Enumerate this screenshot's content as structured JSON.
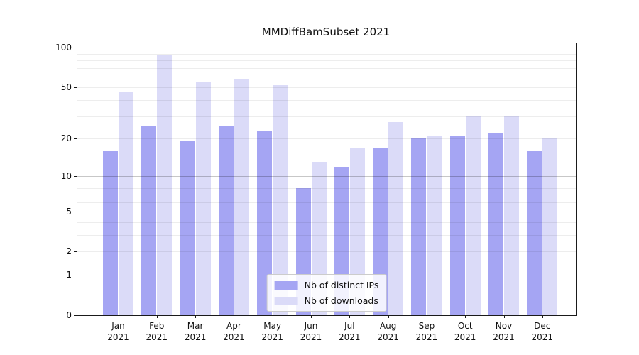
{
  "chart_data": {
    "type": "bar",
    "title": "MMDiffBamSubset 2021",
    "categories": [
      "Jan\n2021",
      "Feb\n2021",
      "Mar\n2021",
      "Apr\n2021",
      "May\n2021",
      "Jun\n2021",
      "Jul\n2021",
      "Aug\n2021",
      "Sep\n2021",
      "Oct\n2021",
      "Nov\n2021",
      "Dec\n2021"
    ],
    "series": [
      {
        "name": "Nb of distinct IPs",
        "color": "#a5a5f3",
        "values": [
          16,
          25,
          19,
          25,
          23,
          8,
          12,
          17,
          20,
          21,
          22,
          16
        ]
      },
      {
        "name": "Nb of downloads",
        "color": "#dbdbf8",
        "values": [
          46,
          88,
          55,
          58,
          52,
          13,
          17,
          27,
          21,
          30,
          30,
          20
        ]
      }
    ],
    "y_axis": {
      "scale": "log1p",
      "ticks": [
        100,
        50,
        20,
        10,
        5,
        2,
        1,
        0
      ],
      "major_grid": [
        100,
        10,
        1
      ],
      "minor_grid": [
        90,
        80,
        70,
        60,
        50,
        40,
        30,
        20,
        9,
        8,
        7,
        6,
        5,
        4,
        3,
        2
      ],
      "max": 107.7,
      "min": 0
    },
    "xlabel": "",
    "ylabel": "",
    "grid": true,
    "legend_position": "lower center"
  }
}
